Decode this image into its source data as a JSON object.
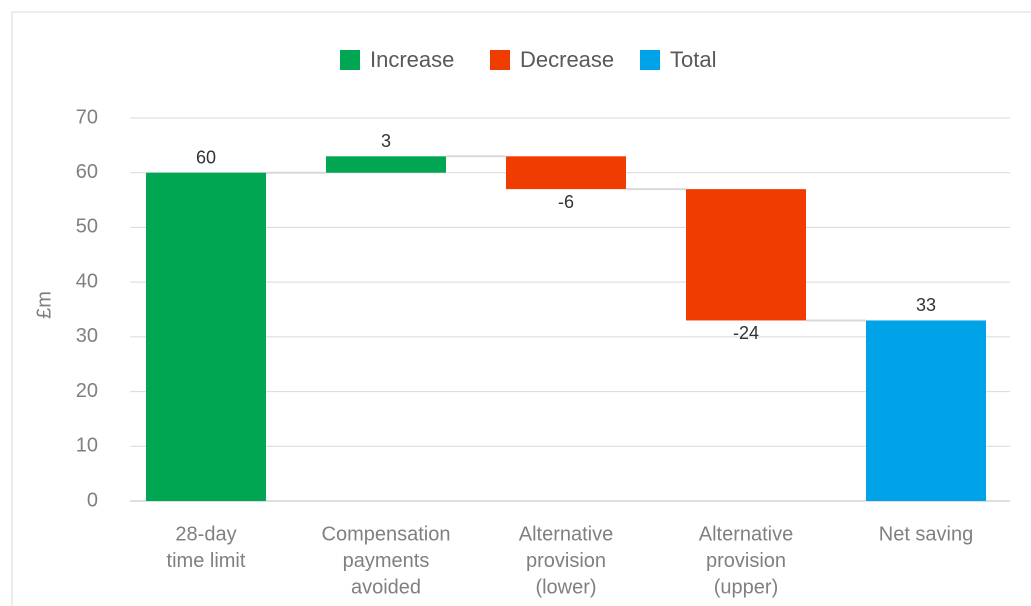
{
  "chart_data": {
    "type": "waterfall",
    "y_label": "£m",
    "legend": [
      {
        "name": "Increase",
        "color": "#00a651"
      },
      {
        "name": "Decrease",
        "color": "#f03c00"
      },
      {
        "name": "Total",
        "color": "#00a3e8"
      }
    ],
    "categories": [
      [
        "28-day",
        "time limit"
      ],
      [
        "Compensation",
        "payments",
        "avoided"
      ],
      [
        "Alternative",
        "provision",
        "(lower)"
      ],
      [
        "Alternative",
        "provision",
        "(upper)"
      ],
      [
        "Net saving"
      ]
    ],
    "values": [
      60,
      3,
      -6,
      -24,
      33
    ],
    "kinds": [
      0,
      0,
      1,
      1,
      2
    ],
    "ylim": [
      0,
      70
    ],
    "yticks": [
      0,
      10,
      20,
      30,
      40,
      50,
      60,
      70
    ],
    "grid": true
  }
}
